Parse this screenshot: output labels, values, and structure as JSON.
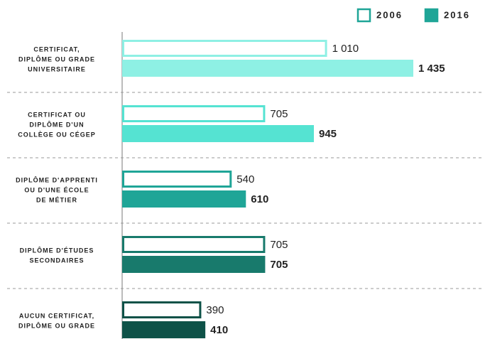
{
  "chart_data": {
    "type": "bar",
    "orientation": "horizontal",
    "categories": [
      [
        "CERTIFICAT,",
        "DIPLÔME OU GRADE",
        "UNIVERSITAIRE"
      ],
      [
        "CERTIFICAT OU",
        "DIPLÔME D'UN",
        "COLLÈGE OU CÉGEP"
      ],
      [
        "DIPLÔME D'APPRENTI",
        "OU D'UNE ÉCOLE",
        "DE MÉTIER"
      ],
      [
        "DIPLÔME D'ÉTUDES",
        "SECONDAIRES"
      ],
      [
        "AUCUN CERTIFICAT,",
        "DIPLÔME OU GRADE"
      ]
    ],
    "category_colors": [
      "#8ef0e4",
      "#55e3d2",
      "#1fa597",
      "#187a6c",
      "#0e5248"
    ],
    "series": [
      {
        "name": "2006",
        "color": "#1fa597",
        "style": "outline",
        "values": [
          1010,
          705,
          540,
          705,
          390
        ],
        "value_labels": [
          "1 010",
          "705",
          "540",
          "705",
          "390"
        ]
      },
      {
        "name": "2016",
        "color": "#1fa597",
        "style": "filled",
        "values": [
          1435,
          945,
          610,
          705,
          410
        ],
        "value_labels": [
          "1 435",
          "945",
          "610",
          "705",
          "410"
        ]
      }
    ]
  }
}
